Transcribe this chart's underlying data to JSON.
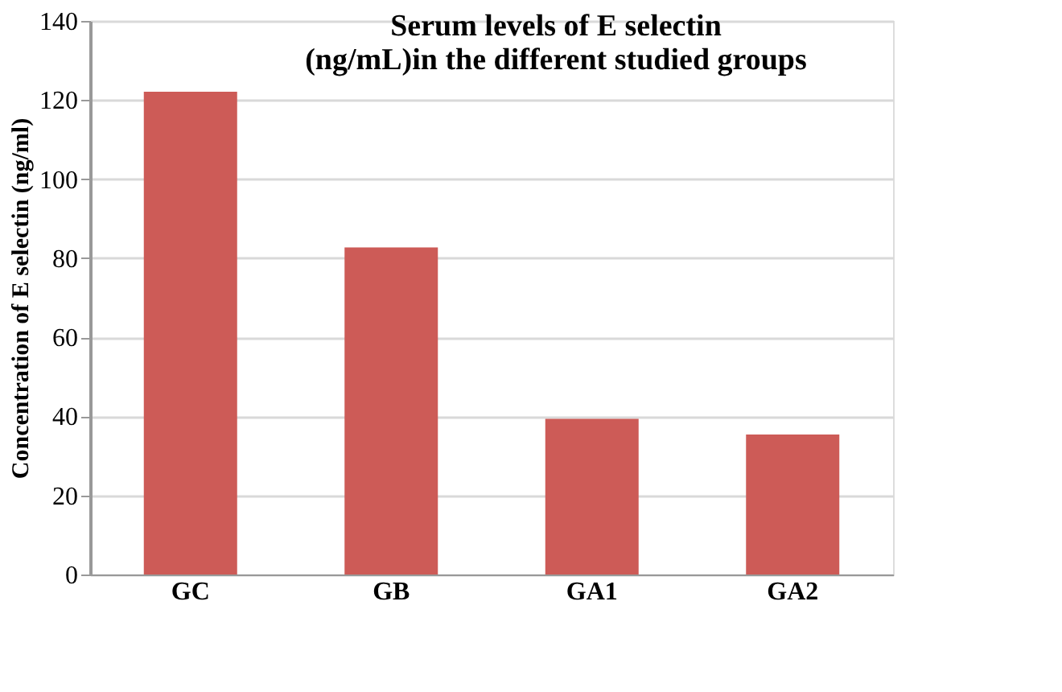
{
  "chart_data": {
    "type": "bar",
    "title": "Serum levels of E selectin (ng/mL)in the different studied groups",
    "ylabel": "Concentration of  E selectin (ng/ml)",
    "categories": [
      "GC",
      "GB",
      "GA1",
      "GA2"
    ],
    "values": [
      122.1,
      82.7,
      39.4,
      35.4
    ],
    "color": "#cd5b57",
    "ylim": [
      0,
      140
    ],
    "yticks": [
      0,
      20,
      40,
      60,
      80,
      100,
      120,
      140
    ],
    "grid": "y"
  }
}
